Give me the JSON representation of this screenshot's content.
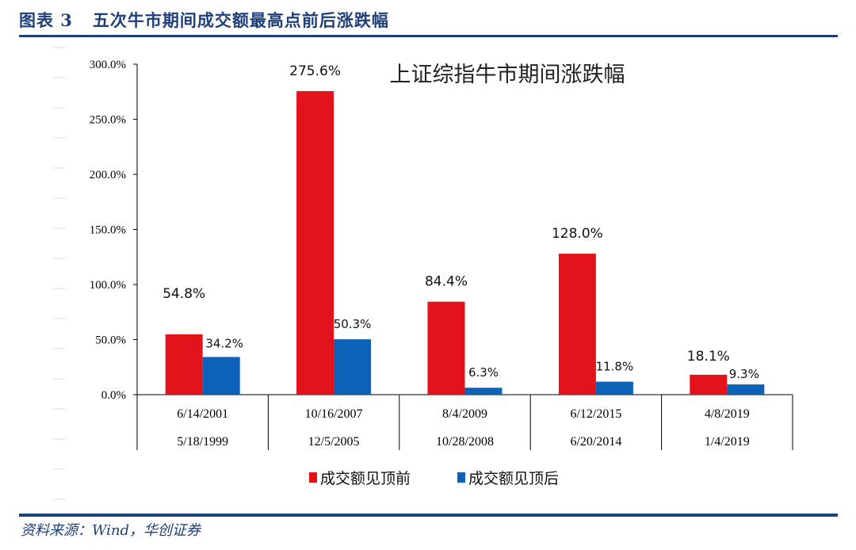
{
  "figure": {
    "label": "图表 3   五次牛市期间成交额最高点前后涨跌幅",
    "source": "资料来源：Wind，华创证券"
  },
  "colors": {
    "series_before": "#e3131b",
    "series_after": "#0c62b9",
    "brand": "#1f3f7a"
  },
  "chart_data": {
    "type": "bar",
    "title": "上证综指牛市期间涨跌幅",
    "categories": [
      {
        "peak": "6/14/2001",
        "start": "5/18/1999"
      },
      {
        "peak": "10/16/2007",
        "start": "12/5/2005"
      },
      {
        "peak": "8/4/2009",
        "start": "10/28/2008"
      },
      {
        "peak": "6/12/2015",
        "start": "6/20/2014"
      },
      {
        "peak": "4/8/2019",
        "start": "1/4/2019"
      }
    ],
    "series": [
      {
        "name": "成交额见顶前",
        "values": [
          54.8,
          275.6,
          84.4,
          128.0,
          18.1
        ],
        "labels": [
          "54.8%",
          "275.6%",
          "84.4%",
          "128.0%",
          "18.1%"
        ]
      },
      {
        "name": "成交额见顶后",
        "values": [
          34.2,
          50.3,
          6.3,
          11.8,
          9.3
        ],
        "labels": [
          "34.2%",
          "50.3%",
          "6.3%",
          "11.8%",
          "9.3%"
        ]
      }
    ],
    "yticks": [
      "0.0%",
      "50.0%",
      "100.0%",
      "150.0%",
      "200.0%",
      "250.0%",
      "300.0%"
    ],
    "ylim": [
      0,
      300
    ],
    "grid": false,
    "legend": "bottom"
  }
}
